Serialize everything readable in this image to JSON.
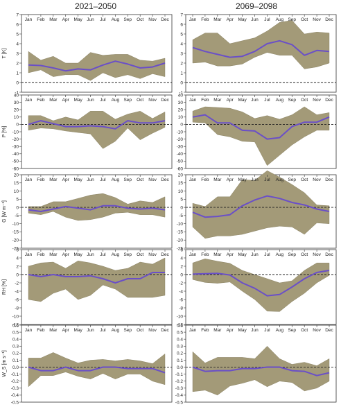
{
  "colors": {
    "band": "#a39a78",
    "mean": "#6a4fc8",
    "axis": "#333333",
    "zero": "#222222"
  },
  "chart_data": {
    "type": "area",
    "column_titles": [
      "2021–2050",
      "2069–2098"
    ],
    "months": [
      "Jan",
      "Feb",
      "Mar",
      "Apr",
      "May",
      "Jun",
      "Jul",
      "Aug",
      "Sep",
      "Oct",
      "Nov",
      "Dec"
    ],
    "rows": [
      {
        "ylabel": "T [K]",
        "ylim": [
          -1,
          7
        ],
        "yticks": [
          -1,
          0,
          1,
          2,
          3,
          4,
          5,
          6,
          7
        ],
        "panels": [
          {
            "mean": [
              1.8,
              1.75,
              1.5,
              1.2,
              1.4,
              1.3,
              1.8,
              2.2,
              1.9,
              1.5,
              1.6,
              2.0
            ],
            "upper": [
              3.2,
              2.3,
              2.7,
              2.0,
              2.0,
              3.1,
              2.8,
              2.9,
              2.9,
              2.3,
              2.2,
              2.5
            ],
            "lower": [
              1.0,
              1.3,
              0.6,
              0.8,
              0.8,
              0.2,
              1.0,
              0.5,
              0.8,
              0.4,
              0.9,
              0.6
            ]
          },
          {
            "mean": [
              3.6,
              3.2,
              2.9,
              2.6,
              2.7,
              3.2,
              4.0,
              4.3,
              3.9,
              2.8,
              3.3,
              3.2
            ],
            "upper": [
              4.4,
              5.1,
              5.1,
              4.0,
              4.3,
              4.6,
              5.3,
              6.2,
              6.4,
              5.0,
              5.2,
              5.1
            ],
            "lower": [
              2.0,
              2.1,
              1.7,
              1.7,
              1.9,
              2.6,
              3.1,
              2.8,
              2.8,
              1.4,
              1.6,
              2.0
            ]
          }
        ]
      },
      {
        "ylabel": "P [%]",
        "ylim": [
          -60,
          40
        ],
        "yticks": [
          -60,
          -50,
          -40,
          -30,
          -20,
          -10,
          0,
          10,
          20,
          30,
          40
        ],
        "panels": [
          {
            "mean": [
              0,
              5,
              1,
              -3,
              -3,
              -2,
              -3,
              -6,
              5,
              2,
              2,
              5
            ],
            "upper": [
              12,
              12,
              5,
              10,
              6,
              18,
              18,
              7,
              14,
              18,
              8,
              17
            ],
            "lower": [
              -8,
              -5,
              -6,
              -9,
              -11,
              -13,
              -33,
              -23,
              -5,
              -21,
              -12,
              -4
            ]
          },
          {
            "mean": [
              10,
              13,
              2,
              2,
              -8,
              -9,
              -20,
              -18,
              -3,
              3,
              3,
              10
            ],
            "upper": [
              18,
              24,
              23,
              22,
              17,
              8,
              12,
              7,
              13,
              24,
              13,
              16
            ],
            "lower": [
              3,
              2,
              -14,
              -17,
              -23,
              -24,
              -56,
              -42,
              -28,
              -17,
              -8,
              -8
            ]
          }
        ]
      },
      {
        "ylabel": "G [W m⁻²]",
        "ylim": [
          -25,
          20
        ],
        "yticks": [
          -25,
          -20,
          -15,
          -10,
          -5,
          0,
          5,
          10,
          15,
          20
        ],
        "panels": [
          {
            "mean": [
              -1.5,
              -2.5,
              -1.0,
              0.5,
              -0.5,
              -1.5,
              1.0,
              1.0,
              -0.5,
              -1.0,
              -0.5,
              -1.5
            ],
            "upper": [
              0.5,
              0.5,
              3.5,
              3.5,
              5.5,
              7.5,
              8.5,
              6.0,
              2.0,
              4.0,
              3.0,
              6.5
            ],
            "lower": [
              -3.5,
              -4.5,
              -2.5,
              -6.0,
              -8.0,
              -7.5,
              -6.0,
              -3.5,
              -3.0,
              -4.5,
              -4.5,
              -6.0
            ]
          },
          {
            "mean": [
              -3.0,
              -6.0,
              -5.5,
              -4.5,
              1.0,
              4.5,
              7.0,
              5.5,
              3.0,
              1.5,
              -1.0,
              -2.5
            ],
            "upper": [
              2.5,
              0.5,
              6.5,
              6.5,
              17.0,
              16.5,
              22.5,
              18.5,
              14.0,
              9.0,
              1.5,
              1.0
            ],
            "lower": [
              -12.0,
              -19.0,
              -17.5,
              -17.5,
              -16.5,
              -14.5,
              -12.5,
              -11.5,
              -12.0,
              -16.5,
              -9.5,
              -10.0
            ]
          }
        ]
      },
      {
        "ylabel": "RH [%]",
        "ylim": [
          -12,
          6
        ],
        "yticks": [
          -12,
          -10,
          -8,
          -6,
          -4,
          -2,
          0,
          2,
          4,
          6
        ],
        "panels": [
          {
            "mean": [
              0,
              -0.5,
              0,
              -0.5,
              -0.5,
              -0.3,
              -1.0,
              -2.0,
              -1.0,
              -1.0,
              0.5,
              0.5
            ],
            "upper": [
              2.0,
              2.8,
              3.0,
              1.5,
              3.3,
              2.8,
              2.0,
              1.0,
              1.5,
              3.0,
              2.5,
              4.0
            ],
            "lower": [
              -6.0,
              -6.5,
              -4.5,
              -3.5,
              -6.0,
              -5.0,
              -2.5,
              -3.5,
              -5.5,
              -5.5,
              -5.5,
              -5.0
            ]
          },
          {
            "mean": [
              0.1,
              0.2,
              0.3,
              -0.1,
              -2.0,
              -3.3,
              -5.1,
              -4.8,
              -3.0,
              -1.0,
              0.5,
              1.0
            ],
            "upper": [
              2.8,
              3.8,
              3.2,
              2.7,
              1.0,
              0.0,
              -1.0,
              -2.0,
              -1.5,
              1.0,
              2.8,
              2.8
            ],
            "lower": [
              -1.2,
              -1.9,
              -2.1,
              -1.8,
              -4.0,
              -6.0,
              -8.8,
              -8.9,
              -6.5,
              -4.5,
              -2.0,
              -0.2
            ]
          }
        ]
      },
      {
        "ylabel": "W_S [m s⁻¹]",
        "ylim": [
          -0.5,
          0.6
        ],
        "yticks": [
          -0.5,
          -0.4,
          -0.3,
          -0.2,
          -0.1,
          0.0,
          0.1,
          0.2,
          0.3,
          0.4,
          0.5,
          0.6
        ],
        "panels": [
          {
            "mean": [
              0.0,
              -0.05,
              -0.05,
              0.0,
              -0.05,
              -0.05,
              0.0,
              0.0,
              -0.02,
              -0.02,
              -0.02,
              -0.08
            ],
            "upper": [
              0.13,
              0.13,
              0.21,
              0.13,
              0.06,
              0.1,
              0.11,
              0.09,
              0.11,
              0.09,
              0.05,
              0.19
            ],
            "lower": [
              -0.28,
              -0.12,
              -0.12,
              -0.07,
              -0.13,
              -0.17,
              -0.09,
              -0.17,
              -0.1,
              -0.1,
              -0.2,
              -0.25
            ]
          },
          {
            "mean": [
              0.0,
              -0.06,
              -0.05,
              -0.05,
              -0.02,
              -0.02,
              0.0,
              0.0,
              -0.05,
              -0.06,
              -0.12,
              -0.08
            ],
            "upper": [
              0.22,
              0.06,
              0.14,
              0.14,
              0.14,
              0.12,
              0.3,
              0.12,
              0.04,
              0.07,
              0.02,
              0.12
            ],
            "lower": [
              -0.35,
              -0.33,
              -0.4,
              -0.27,
              -0.23,
              -0.18,
              -0.28,
              -0.2,
              -0.22,
              -0.34,
              -0.3,
              -0.2
            ]
          }
        ]
      }
    ]
  }
}
